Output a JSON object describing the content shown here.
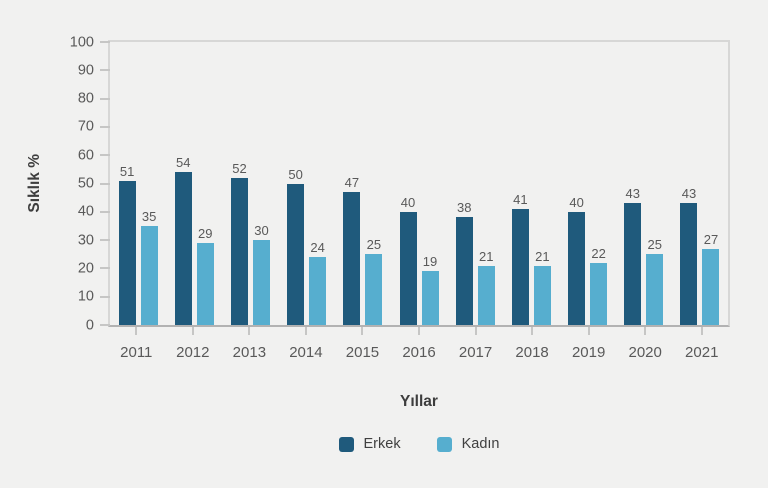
{
  "chart_data": {
    "type": "bar",
    "title": "",
    "xlabel": "Yıllar",
    "ylabel": "Sıklık %",
    "categories": [
      "2011",
      "2012",
      "2013",
      "2014",
      "2015",
      "2016",
      "2017",
      "2018",
      "2019",
      "2020",
      "2021"
    ],
    "series": [
      {
        "name": "Erkek",
        "color": "#1F5A7C",
        "values": [
          51,
          54,
          52,
          50,
          47,
          40,
          38,
          41,
          40,
          43,
          43
        ]
      },
      {
        "name": "Kadın",
        "color": "#56AECF",
        "values": [
          35,
          29,
          30,
          24,
          25,
          19,
          21,
          21,
          22,
          25,
          27
        ]
      }
    ],
    "ylim": [
      0,
      100
    ],
    "yticks": [
      0,
      10,
      20,
      30,
      40,
      50,
      60,
      70,
      80,
      90,
      100
    ],
    "grid": false,
    "legend_position": "bottom",
    "value_labels": true
  },
  "colors": {
    "background": "#F1F1F0",
    "plot_border": "#D7D7D6",
    "axis_line": "#B2B2B2",
    "tick_mark": "#C6C6C5",
    "tick_label": "#595959",
    "value_label": "#595959",
    "axis_title": "#3D3D3D",
    "legend_text": "#404040"
  }
}
